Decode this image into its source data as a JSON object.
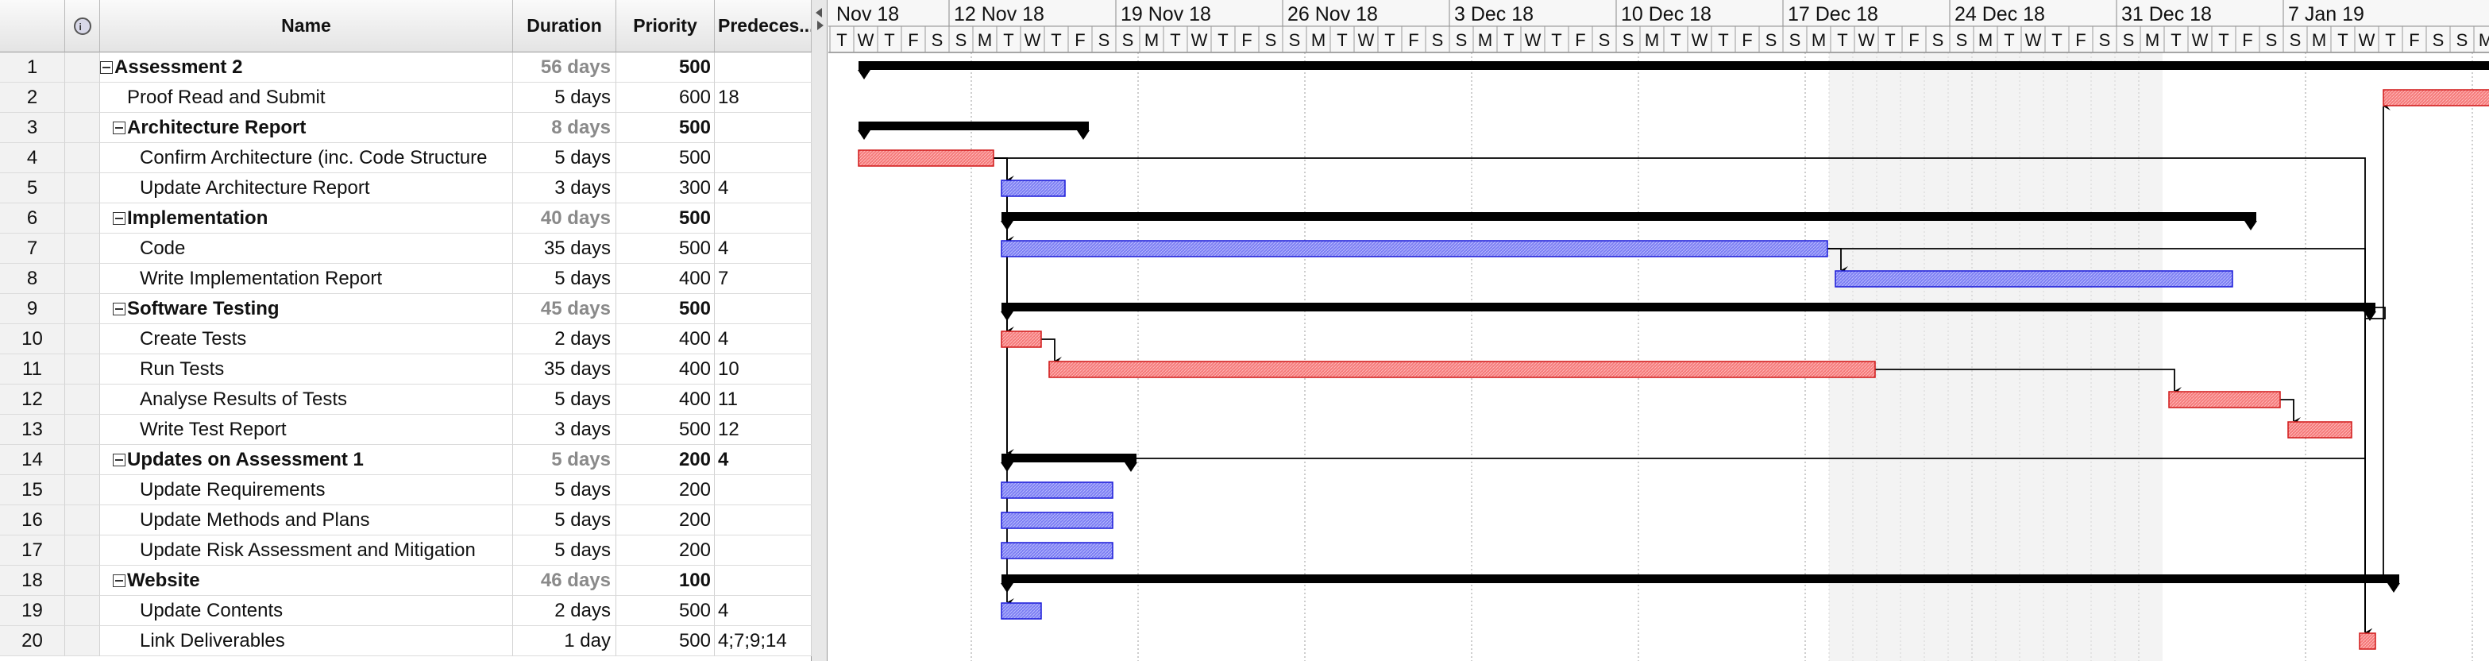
{
  "columns": {
    "indicator": "indicator-column",
    "name": "Name",
    "duration": "Duration",
    "priority": "Priority",
    "predecessors": "Predeces..."
  },
  "tasks": [
    {
      "id": "1",
      "name": "Assessment 2",
      "duration": "56 days",
      "priority": "500",
      "predecessors": "",
      "summary": true
    },
    {
      "id": "2",
      "name": "Proof Read and Submit",
      "duration": "5 days",
      "priority": "600",
      "predecessors": "18",
      "summary": false
    },
    {
      "id": "3",
      "name": "Architecture Report",
      "duration": "8 days",
      "priority": "500",
      "predecessors": "",
      "summary": true
    },
    {
      "id": "4",
      "name": "Confirm Architecture (inc. Code Structure",
      "duration": "5 days",
      "priority": "500",
      "predecessors": "",
      "summary": false
    },
    {
      "id": "5",
      "name": "Update Architecture Report",
      "duration": "3 days",
      "priority": "300",
      "predecessors": "4",
      "summary": false
    },
    {
      "id": "6",
      "name": "Implementation",
      "duration": "40 days",
      "priority": "500",
      "predecessors": "",
      "summary": true
    },
    {
      "id": "7",
      "name": "Code",
      "duration": "35 days",
      "priority": "500",
      "predecessors": "4",
      "summary": false
    },
    {
      "id": "8",
      "name": "Write Implementation Report",
      "duration": "5 days",
      "priority": "400",
      "predecessors": "7",
      "summary": false
    },
    {
      "id": "9",
      "name": "Software Testing",
      "duration": "45 days",
      "priority": "500",
      "predecessors": "",
      "summary": true
    },
    {
      "id": "10",
      "name": "Create Tests",
      "duration": "2 days",
      "priority": "400",
      "predecessors": "4",
      "summary": false
    },
    {
      "id": "11",
      "name": "Run Tests",
      "duration": "35 days",
      "priority": "400",
      "predecessors": "10",
      "summary": false
    },
    {
      "id": "12",
      "name": "Analyse Results of Tests",
      "duration": "5 days",
      "priority": "400",
      "predecessors": "11",
      "summary": false
    },
    {
      "id": "13",
      "name": "Write Test Report",
      "duration": "3 days",
      "priority": "500",
      "predecessors": "12",
      "summary": false
    },
    {
      "id": "14",
      "name": "Updates on Assessment 1",
      "duration": "5 days",
      "priority": "200",
      "predecessors": "4",
      "summary": true
    },
    {
      "id": "15",
      "name": "Update Requirements",
      "duration": "5 days",
      "priority": "200",
      "predecessors": "",
      "summary": false
    },
    {
      "id": "16",
      "name": "Update Methods and Plans",
      "duration": "5 days",
      "priority": "200",
      "predecessors": "",
      "summary": false
    },
    {
      "id": "17",
      "name": "Update Risk Assessment and Mitigation",
      "duration": "5 days",
      "priority": "200",
      "predecessors": "",
      "summary": false
    },
    {
      "id": "18",
      "name": "Website",
      "duration": "46 days",
      "priority": "100",
      "predecessors": "",
      "summary": true
    },
    {
      "id": "19",
      "name": "Update Contents",
      "duration": "2 days",
      "priority": "500",
      "predecessors": "4",
      "summary": false
    },
    {
      "id": "20",
      "name": "Link Deliverables",
      "duration": "1 day",
      "priority": "500",
      "predecessors": "4;7;9;14",
      "summary": false
    }
  ],
  "timeline": {
    "weeks": [
      "Nov 18",
      "12 Nov 18",
      "19 Nov 18",
      "26 Nov 18",
      "3 Dec 18",
      "10 Dec 18",
      "17 Dec 18",
      "24 Dec 18",
      "31 Dec 18",
      "7 Jan 19"
    ],
    "first_day_cells": [
      "T",
      "W",
      "T",
      "F",
      "S",
      "S"
    ],
    "day_letters": [
      "M",
      "T",
      "W",
      "T",
      "F",
      "S",
      "S"
    ]
  },
  "bars": [
    {
      "row": 1,
      "kind": "summary",
      "start": "2018-11-07",
      "end": "2019-01-15"
    },
    {
      "row": 2,
      "kind": "task",
      "color": "red",
      "start": "2019-01-10",
      "end": "2019-01-14"
    },
    {
      "row": 3,
      "kind": "summary",
      "start": "2018-11-07",
      "end": "2018-11-16"
    },
    {
      "row": 4,
      "kind": "task",
      "color": "red",
      "start": "2018-11-07",
      "end": "2018-11-12"
    },
    {
      "row": 5,
      "kind": "task",
      "color": "blue",
      "start": "2018-11-13",
      "end": "2018-11-15"
    },
    {
      "row": 6,
      "kind": "summary",
      "start": "2018-11-13",
      "end": "2019-01-04"
    },
    {
      "row": 7,
      "kind": "task",
      "color": "blue",
      "start": "2018-11-13",
      "end": "2018-12-17"
    },
    {
      "row": 8,
      "kind": "task",
      "color": "blue",
      "start": "2018-12-18",
      "end": "2019-01-03"
    },
    {
      "row": 9,
      "kind": "summary",
      "start": "2018-11-13",
      "end": "2019-01-09"
    },
    {
      "row": 10,
      "kind": "task",
      "color": "red",
      "start": "2018-11-13",
      "end": "2018-11-14"
    },
    {
      "row": 11,
      "kind": "task",
      "color": "red",
      "start": "2018-11-15",
      "end": "2018-12-19"
    },
    {
      "row": 12,
      "kind": "task",
      "color": "red",
      "start": "2019-01-01",
      "end": "2019-01-05"
    },
    {
      "row": 13,
      "kind": "task",
      "color": "red",
      "start": "2019-01-06",
      "end": "2019-01-08"
    },
    {
      "row": 14,
      "kind": "summary",
      "start": "2018-11-13",
      "end": "2018-11-18"
    },
    {
      "row": 15,
      "kind": "task",
      "color": "blue",
      "start": "2018-11-13",
      "end": "2018-11-17"
    },
    {
      "row": 16,
      "kind": "task",
      "color": "blue",
      "start": "2018-11-13",
      "end": "2018-11-17"
    },
    {
      "row": 17,
      "kind": "task",
      "color": "blue",
      "start": "2018-11-13",
      "end": "2018-11-17"
    },
    {
      "row": 18,
      "kind": "summary",
      "start": "2018-11-13",
      "end": "2019-01-10"
    },
    {
      "row": 19,
      "kind": "task",
      "color": "blue",
      "start": "2018-11-13",
      "end": "2018-11-14"
    },
    {
      "row": 20,
      "kind": "task",
      "color": "red",
      "start": "2019-01-09",
      "end": "2019-01-09"
    }
  ],
  "links": [
    {
      "from": 4,
      "to": 5
    },
    {
      "from": 4,
      "to": 7
    },
    {
      "from": 4,
      "to": 10
    },
    {
      "from": 4,
      "to": 14
    },
    {
      "from": 4,
      "to": 19
    },
    {
      "from": 4,
      "to": 20
    },
    {
      "from": 7,
      "to": 8
    },
    {
      "from": 7,
      "to": 20
    },
    {
      "from": 9,
      "to": 20
    },
    {
      "from": 10,
      "to": 11
    },
    {
      "from": 11,
      "to": 12
    },
    {
      "from": 12,
      "to": 13
    },
    {
      "from": 14,
      "to": 20
    },
    {
      "from": 18,
      "to": 2
    }
  ],
  "colors": {
    "red_fill": "#f47a7a",
    "red_stroke": "#d01818",
    "blue_fill": "#7d7ff2",
    "blue_stroke": "#1a1ad8",
    "summary": "#000000",
    "weekend_shade": "#e9e9e9",
    "grid": "#bdbdbd"
  }
}
